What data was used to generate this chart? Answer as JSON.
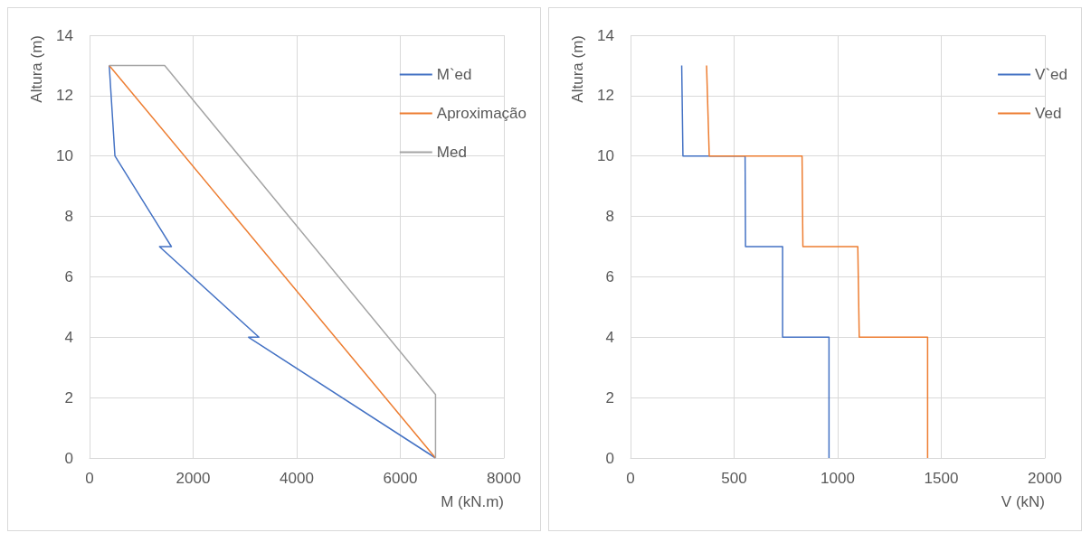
{
  "chart_data": [
    {
      "type": "line",
      "xlabel": "M (kN.m)",
      "ylabel": "Altura (m)",
      "xlim": [
        0,
        8000
      ],
      "xticks": [
        0,
        2000,
        4000,
        6000,
        8000
      ],
      "ylim": [
        0,
        14
      ],
      "yticks": [
        0,
        2,
        4,
        6,
        8,
        10,
        12,
        14
      ],
      "grid": true,
      "legend": "top right",
      "marker": "none",
      "line_style": "solid",
      "series": [
        {
          "name": "M`ed",
          "color": "#4472c4",
          "x": [
            380,
            490,
            1580,
            1350,
            3270,
            3070,
            6680
          ],
          "values": [
            13,
            10,
            7,
            7,
            4,
            4,
            0
          ]
        },
        {
          "name": "Aproximação",
          "color": "#ed7d31",
          "x": [
            380,
            6680
          ],
          "values": [
            13,
            0
          ]
        },
        {
          "name": "Med",
          "color": "#a5a5a5",
          "x": [
            380,
            1450,
            6680,
            6680
          ],
          "values": [
            13,
            13,
            2.1,
            0
          ]
        }
      ]
    },
    {
      "type": "line",
      "xlabel": "V (kN)",
      "ylabel": "Altura (m)",
      "xlim": [
        0,
        2000
      ],
      "xticks": [
        0,
        500,
        1000,
        1500,
        2000
      ],
      "ylim": [
        0,
        14
      ],
      "yticks": [
        0,
        2,
        4,
        6,
        8,
        10,
        12,
        14
      ],
      "grid": true,
      "legend": "top right",
      "marker": "none",
      "line_style": "solid",
      "series": [
        {
          "name": "V`ed",
          "color": "#4472c4",
          "x": [
            247,
            253,
            553,
            555,
            734,
            734,
            958,
            958
          ],
          "values": [
            13,
            10,
            10,
            7,
            7,
            4,
            4,
            0
          ]
        },
        {
          "name": "Ved",
          "color": "#ed7d31",
          "x": [
            367,
            380,
            828,
            832,
            1097,
            1104,
            1434,
            1434
          ],
          "values": [
            13,
            10,
            10,
            7,
            7,
            4,
            4,
            0
          ]
        }
      ]
    }
  ]
}
